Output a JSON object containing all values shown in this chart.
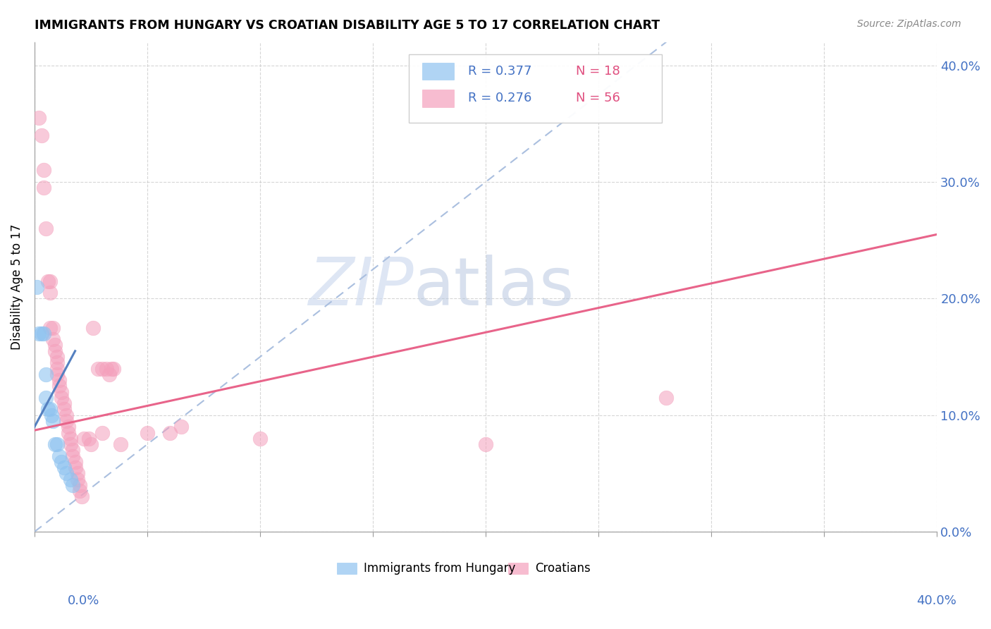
{
  "title": "IMMIGRANTS FROM HUNGARY VS CROATIAN DISABILITY AGE 5 TO 17 CORRELATION CHART",
  "source": "Source: ZipAtlas.com",
  "ylabel": "Disability Age 5 to 17",
  "legend_hungary": {
    "R": 0.377,
    "N": 18,
    "label": "Immigrants from Hungary"
  },
  "legend_croatian": {
    "R": 0.276,
    "N": 56,
    "label": "Croatians"
  },
  "color_hungary": "#8FC3F0",
  "color_croatian": "#F4A0BC",
  "trendline_hungary_color": "#5580C0",
  "trendline_croatian_color": "#E8648A",
  "trendline_dashed_color": "#AABFDF",
  "watermark_zip": "ZIP",
  "watermark_atlas": "atlas",
  "xlim": [
    0.0,
    0.4
  ],
  "ylim": [
    0.0,
    0.42
  ],
  "hungary_x": [
    0.001,
    0.002,
    0.003,
    0.004,
    0.005,
    0.005,
    0.006,
    0.007,
    0.0075,
    0.008,
    0.009,
    0.01,
    0.011,
    0.012,
    0.013,
    0.014,
    0.016,
    0.017
  ],
  "hungary_y": [
    0.21,
    0.17,
    0.17,
    0.17,
    0.135,
    0.115,
    0.105,
    0.105,
    0.1,
    0.095,
    0.075,
    0.075,
    0.065,
    0.06,
    0.055,
    0.05,
    0.045,
    0.04
  ],
  "croatian_x": [
    0.002,
    0.003,
    0.004,
    0.004,
    0.005,
    0.006,
    0.007,
    0.007,
    0.007,
    0.008,
    0.008,
    0.009,
    0.009,
    0.01,
    0.01,
    0.01,
    0.01,
    0.011,
    0.011,
    0.012,
    0.012,
    0.013,
    0.013,
    0.014,
    0.014,
    0.015,
    0.015,
    0.016,
    0.016,
    0.017,
    0.017,
    0.018,
    0.018,
    0.019,
    0.019,
    0.02,
    0.02,
    0.021,
    0.022,
    0.024,
    0.025,
    0.026,
    0.028,
    0.03,
    0.03,
    0.032,
    0.033,
    0.034,
    0.035,
    0.038,
    0.05,
    0.06,
    0.065,
    0.1,
    0.2,
    0.28
  ],
  "croatian_y": [
    0.355,
    0.34,
    0.31,
    0.295,
    0.26,
    0.215,
    0.215,
    0.205,
    0.175,
    0.175,
    0.165,
    0.16,
    0.155,
    0.15,
    0.145,
    0.14,
    0.135,
    0.13,
    0.125,
    0.12,
    0.115,
    0.11,
    0.105,
    0.1,
    0.095,
    0.09,
    0.085,
    0.08,
    0.075,
    0.07,
    0.065,
    0.06,
    0.055,
    0.05,
    0.045,
    0.04,
    0.035,
    0.03,
    0.08,
    0.08,
    0.075,
    0.175,
    0.14,
    0.085,
    0.14,
    0.14,
    0.135,
    0.14,
    0.14,
    0.075,
    0.085,
    0.085,
    0.09,
    0.08,
    0.075,
    0.115
  ],
  "trendline_croatian_x0": 0.0,
  "trendline_croatian_y0": 0.087,
  "trendline_croatian_x1": 0.4,
  "trendline_croatian_y1": 0.255,
  "trendline_hungary_x0": 0.0,
  "trendline_hungary_y0": 0.09,
  "trendline_hungary_x1": 0.018,
  "trendline_hungary_y1": 0.155,
  "trendline_dashed_x0": 0.0,
  "trendline_dashed_y0": 0.0,
  "trendline_dashed_x1": 0.28,
  "trendline_dashed_y1": 0.42
}
